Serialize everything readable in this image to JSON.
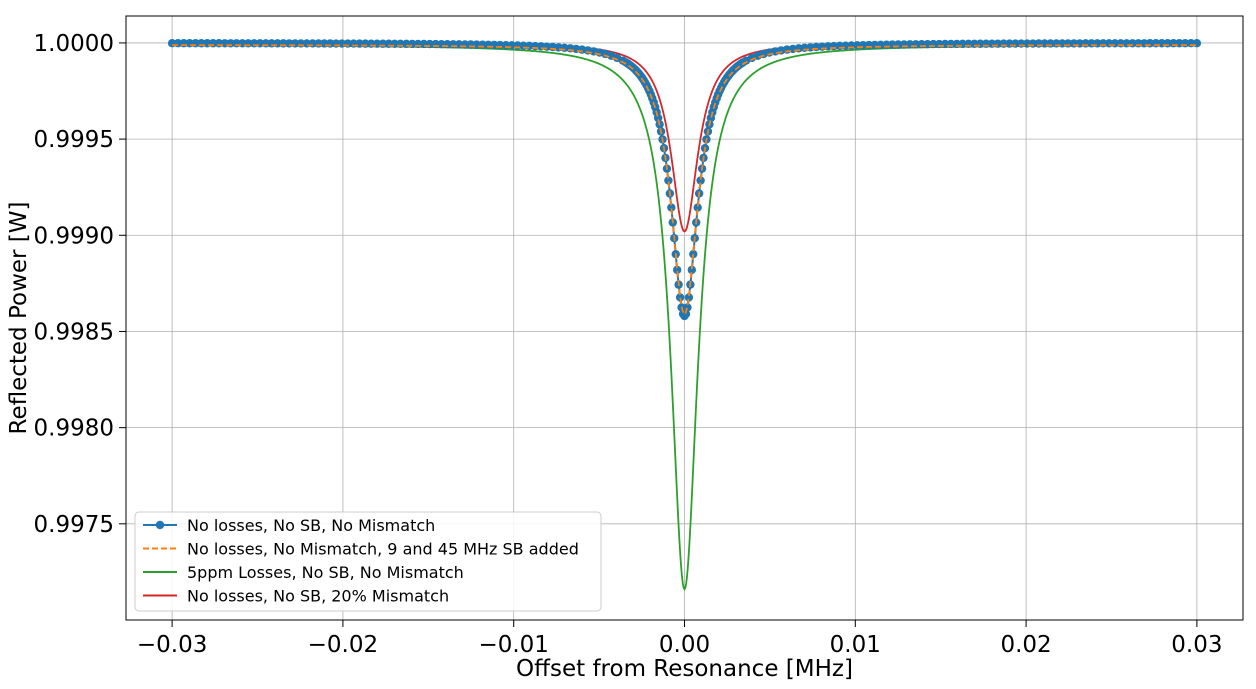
{
  "chart_data": {
    "type": "line",
    "xlabel": "Offset from Resonance [MHz]",
    "ylabel": "Reflected Power [W]",
    "xlim": [
      -0.0327,
      0.0327
    ],
    "ylim": [
      0.997,
      1.00014
    ],
    "grid": true,
    "legend_placement": "lower-left",
    "x_ticks": [
      -0.03,
      -0.02,
      -0.01,
      0.0,
      0.01,
      0.02,
      0.03
    ],
    "x_tick_labels": [
      "−0.03",
      "−0.02",
      "−0.01",
      "0.00",
      "0.01",
      "0.02",
      "0.03"
    ],
    "y_ticks": [
      0.9975,
      0.998,
      0.9985,
      0.999,
      0.9995,
      1.0
    ],
    "y_tick_labels": [
      "0.9975",
      "0.9980",
      "0.9985",
      "0.9990",
      "0.9995",
      "1.0000"
    ],
    "x_range": [
      -0.03,
      0.03
    ],
    "series": [
      {
        "name": "No losses, No SB, No Mismatch",
        "color": "#1f77b4",
        "style": "solid-markers",
        "baseline": 1.0,
        "min": 0.99858,
        "half_width": 0.00095
      },
      {
        "name": "No losses, No Mismatch, 9 and 45 MHz SB added",
        "color": "#ff7f0e",
        "style": "dashed",
        "baseline": 0.99999,
        "min": 0.99859,
        "half_width": 0.00095
      },
      {
        "name": "5ppm Losses, No SB, No Mismatch",
        "color": "#2ca02c",
        "style": "solid",
        "baseline": 0.99999,
        "min": 0.99716,
        "half_width": 0.00095
      },
      {
        "name": "No losses, No SB, 20% Mismatch",
        "color": "#d62728",
        "style": "solid",
        "baseline": 1.0,
        "min": 0.99902,
        "half_width": 0.00095
      }
    ]
  }
}
